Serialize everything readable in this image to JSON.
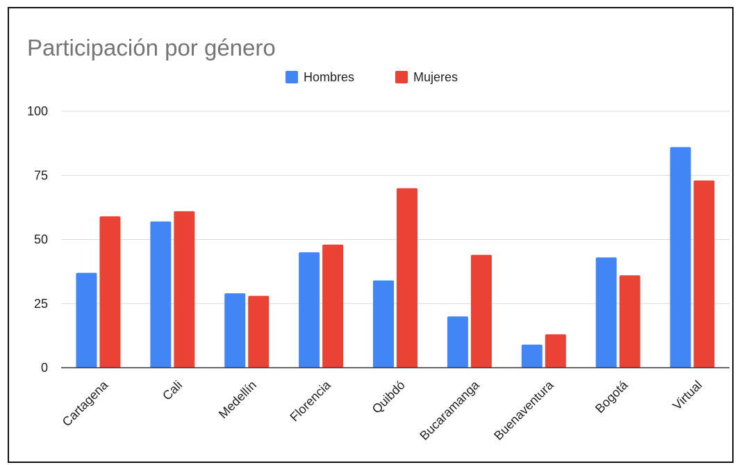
{
  "chart_data": {
    "type": "bar",
    "title": "Participación por género",
    "xlabel": "",
    "ylabel": "",
    "categories": [
      "Cartagena",
      "Cali",
      "Medellín",
      "Florencia",
      "Quibdó",
      "Bucaramanga",
      "Buenaventura",
      "Bogotá",
      "Virtual"
    ],
    "series": [
      {
        "name": "Hombres",
        "color": "#4285f4",
        "values": [
          37,
          57,
          29,
          45,
          34,
          20,
          9,
          43,
          86
        ]
      },
      {
        "name": "Mujeres",
        "color": "#ea4335",
        "values": [
          59,
          61,
          28,
          48,
          70,
          44,
          13,
          36,
          73
        ]
      }
    ],
    "ylim": [
      0,
      100
    ],
    "yticks": [
      0,
      25,
      50,
      75,
      100
    ],
    "grid": true,
    "legend_position": "top-center",
    "colors": {
      "title": "#757575",
      "grid": "#d9d9d9",
      "axis": "#333333",
      "text": "#222222"
    }
  }
}
